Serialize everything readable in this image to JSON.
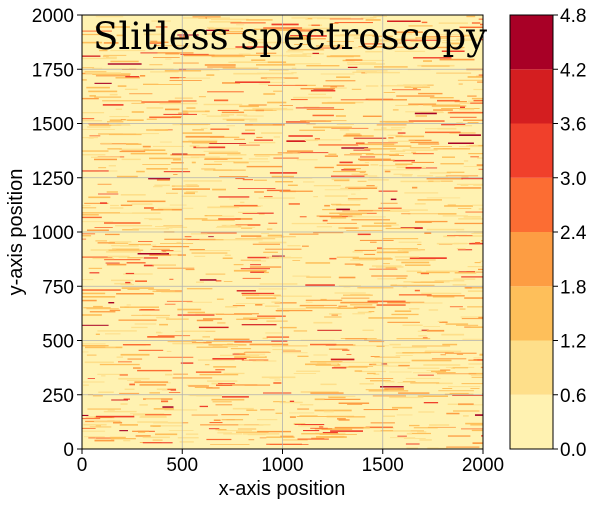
{
  "chart_data": {
    "type": "heatmap",
    "title": "Slitless spectroscopy",
    "xlabel": "x-axis position",
    "ylabel": "y-axis position",
    "xlim": [
      0,
      2000
    ],
    "ylim": [
      0,
      2000
    ],
    "x_ticks": [
      0,
      500,
      1000,
      1500,
      2000
    ],
    "x_tick_labels": [
      "0",
      "500",
      "1000",
      "1500",
      "2000"
    ],
    "y_ticks": [
      0,
      250,
      500,
      750,
      1000,
      1250,
      1500,
      1750,
      2000
    ],
    "y_tick_labels": [
      "0",
      "250",
      "500",
      "750",
      "1000",
      "1250",
      "1500",
      "1750",
      "2000"
    ],
    "grid": true,
    "colormap": "YlOrRd",
    "colorbar": {
      "levels": [
        0.0,
        0.6,
        1.2,
        1.8,
        2.4,
        3.0,
        3.6,
        4.2,
        4.8
      ],
      "level_labels": [
        "0.0",
        "0.6",
        "1.2",
        "1.8",
        "2.4",
        "3.0",
        "3.6",
        "4.2",
        "4.8"
      ],
      "colors": [
        "#fff2b1",
        "#fedf8a",
        "#febf5a",
        "#fd9d43",
        "#fc6d33",
        "#f0402b",
        "#d41e20",
        "#a80026"
      ]
    },
    "title_color": "#6b0f0b",
    "background_level_color": "#fff2b1",
    "streak_color": "#a80026"
  }
}
